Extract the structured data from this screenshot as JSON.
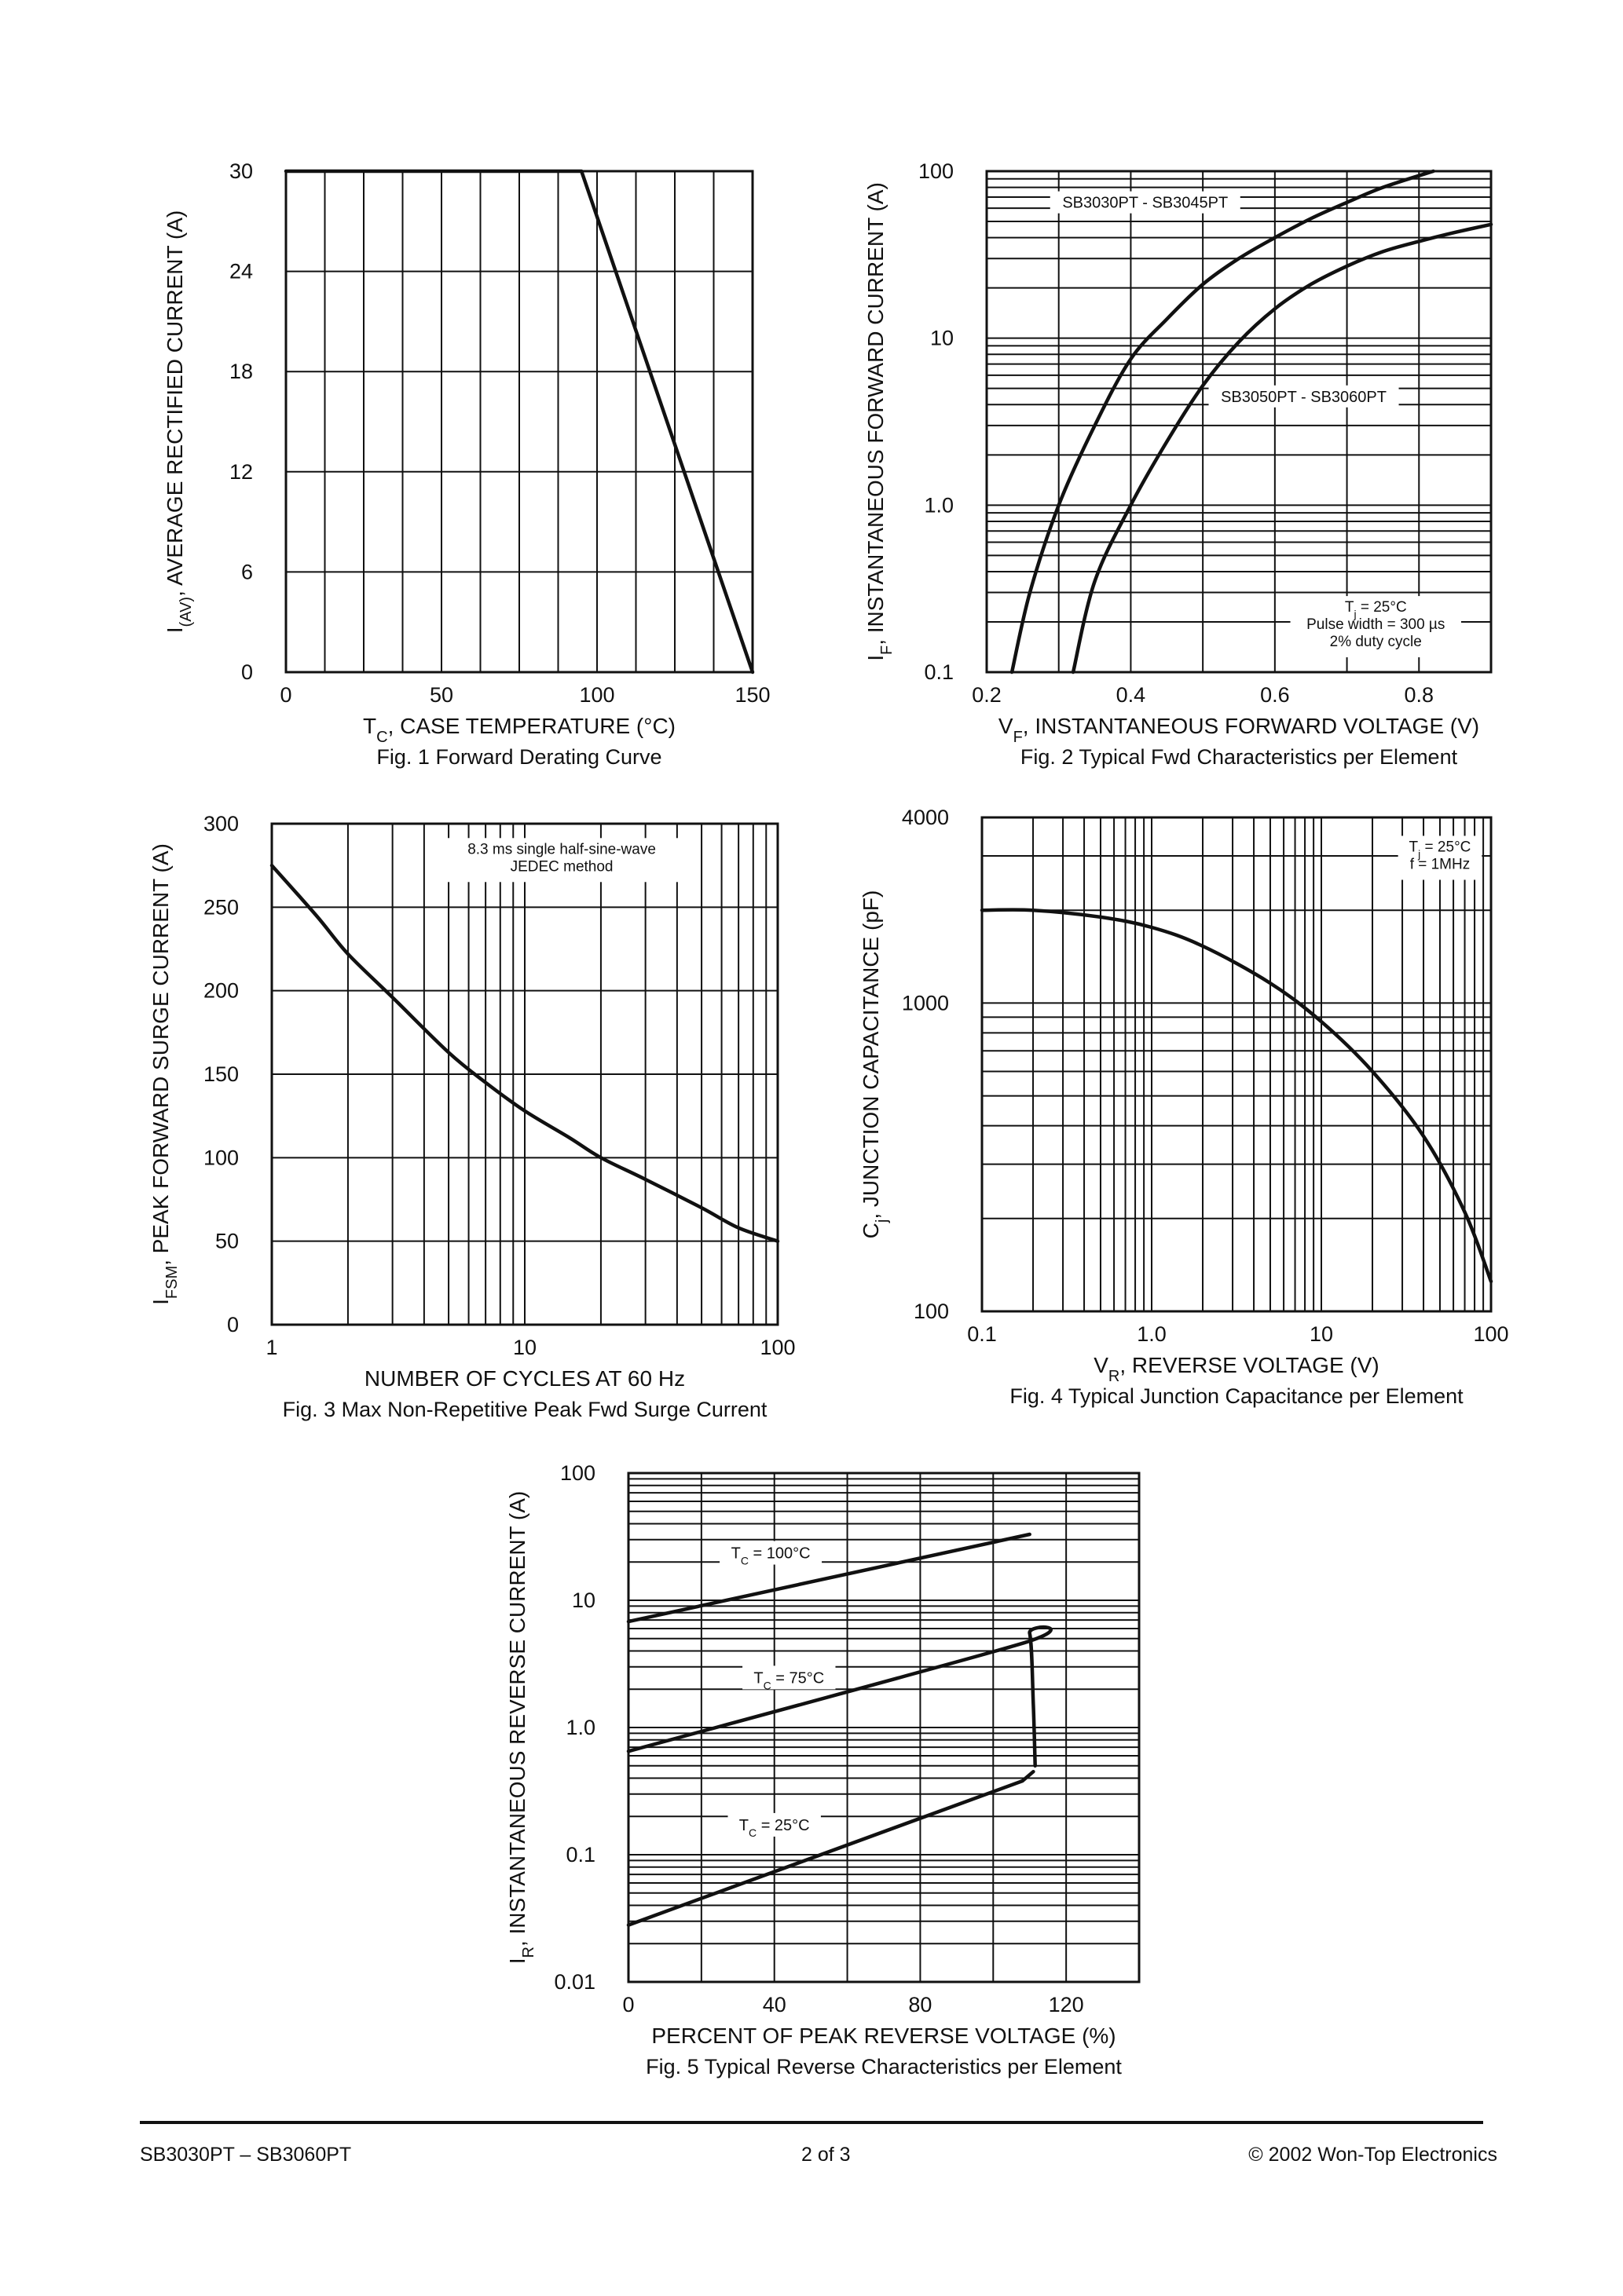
{
  "chart_data": [
    {
      "id": "fig1",
      "type": "line",
      "x_scale": "linear",
      "y_scale": "linear",
      "xlim": [
        0,
        150
      ],
      "ylim": [
        0,
        30
      ],
      "x_ticks": [
        0,
        50,
        100,
        150
      ],
      "y_ticks": [
        0,
        6,
        12,
        18,
        24,
        30
      ],
      "x_tick_labels": [
        "0",
        "50",
        "100",
        "150"
      ],
      "y_tick_labels": [
        "0",
        "6",
        "12",
        "18",
        "24",
        "30"
      ],
      "x_grid": [
        0,
        12.5,
        25,
        37.5,
        50,
        62.5,
        75,
        87.5,
        100,
        112.5,
        125,
        137.5,
        150
      ],
      "y_grid": [
        0,
        6,
        12,
        18,
        24,
        30
      ],
      "xlabel": {
        "main": "T",
        "sub": "C",
        "rest": ", CASE TEMPERATURE (°C)"
      },
      "ylabel": {
        "main": "I",
        "sub": "(AV)",
        "rest": ", AVERAGE RECTIFIED CURRENT (A)"
      },
      "caption": "Fig. 1  Forward Derating Curve",
      "series": [
        {
          "name": "I(AV)",
          "points": [
            [
              0,
              30
            ],
            [
              95,
              30
            ],
            [
              150,
              0
            ]
          ]
        }
      ],
      "annotations": []
    },
    {
      "id": "fig2",
      "type": "line",
      "x_scale": "linear",
      "y_scale": "log",
      "xlim": [
        0.2,
        0.9
      ],
      "ylim": [
        0.1,
        100
      ],
      "x_ticks": [
        0.2,
        0.4,
        0.6,
        0.8
      ],
      "y_ticks": [
        0.1,
        1,
        10,
        100
      ],
      "x_tick_labels": [
        "0.2",
        "0.4",
        "0.6",
        "0.8"
      ],
      "y_tick_labels": [
        "0.1",
        "1.0",
        "10",
        "100"
      ],
      "x_grid": [
        0.2,
        0.3,
        0.4,
        0.5,
        0.6,
        0.7,
        0.8,
        0.9
      ],
      "y_grid": "log",
      "xlabel": {
        "main": "V",
        "sub": "F",
        "rest": ", INSTANTANEOUS FORWARD VOLTAGE (V)"
      },
      "ylabel": {
        "main": "I",
        "sub": "F",
        "rest": ", INSTANTANEOUS FORWARD CURRENT (A)"
      },
      "caption": "Fig. 2  Typical Fwd Characteristics per Element",
      "series": [
        {
          "name": "SB3030PT - SB3045PT",
          "points": [
            [
              0.235,
              0.1
            ],
            [
              0.26,
              0.3
            ],
            [
              0.3,
              1.0
            ],
            [
              0.35,
              3
            ],
            [
              0.4,
              7.5
            ],
            [
              0.45,
              13
            ],
            [
              0.5,
              21
            ],
            [
              0.55,
              30
            ],
            [
              0.6,
              40
            ],
            [
              0.65,
              52
            ],
            [
              0.7,
              65
            ],
            [
              0.75,
              80
            ],
            [
              0.82,
              100
            ]
          ]
        },
        {
          "name": "SB3050PT - SB3060PT",
          "points": [
            [
              0.32,
              0.1
            ],
            [
              0.35,
              0.35
            ],
            [
              0.4,
              1.0
            ],
            [
              0.45,
              2.4
            ],
            [
              0.5,
              5.2
            ],
            [
              0.55,
              9.5
            ],
            [
              0.6,
              15
            ],
            [
              0.65,
              21
            ],
            [
              0.7,
              27
            ],
            [
              0.75,
              33
            ],
            [
              0.8,
              38
            ],
            [
              0.85,
              43
            ],
            [
              0.9,
              48
            ]
          ]
        }
      ],
      "annotations": [
        {
          "kind": "box-label",
          "text": "SB3030PT - SB3045PT",
          "at": [
            0.42,
            61
          ]
        },
        {
          "kind": "box-label",
          "text": "SB3050PT - SB3060PT",
          "at": [
            0.64,
            4.2
          ]
        },
        {
          "kind": "condition",
          "lines": [
            "T|j| = 25°C",
            "Pulse width = 300 µs",
            "2% duty cycle"
          ],
          "at": [
            0.74,
            0.23
          ]
        }
      ]
    },
    {
      "id": "fig3",
      "type": "line",
      "x_scale": "log",
      "y_scale": "linear",
      "xlim": [
        1,
        100
      ],
      "ylim": [
        0,
        300
      ],
      "x_ticks": [
        1,
        10,
        100
      ],
      "y_ticks": [
        0,
        50,
        100,
        150,
        200,
        250,
        300
      ],
      "x_tick_labels": [
        "1",
        "10",
        "100"
      ],
      "y_tick_labels": [
        "0",
        "50",
        "100",
        "150",
        "200",
        "250",
        "300"
      ],
      "x_grid": "log",
      "y_grid": [
        0,
        50,
        100,
        150,
        200,
        250,
        300
      ],
      "xlabel": {
        "main": "NUMBER OF CYCLES AT 60 Hz",
        "sub": "",
        "rest": ""
      },
      "ylabel": {
        "main": "I",
        "sub": "FSM",
        "rest": ", PEAK FORWARD SURGE CURRENT (A)"
      },
      "caption": "Fig. 3  Max Non-Repetitive Peak Fwd Surge Current",
      "series": [
        {
          "name": "IFSM",
          "points": [
            [
              1,
              275
            ],
            [
              1.5,
              245
            ],
            [
              2,
              222
            ],
            [
              3,
              196
            ],
            [
              5,
              163
            ],
            [
              7,
              145
            ],
            [
              10,
              128
            ],
            [
              15,
              112
            ],
            [
              20,
              100
            ],
            [
              30,
              87
            ],
            [
              50,
              70
            ],
            [
              70,
              58
            ],
            [
              100,
              50
            ]
          ]
        }
      ],
      "annotations": [
        {
          "kind": "condition",
          "lines": [
            "8.3 ms single half-sine-wave",
            "JEDEC method"
          ],
          "at": [
            14,
            282
          ]
        }
      ]
    },
    {
      "id": "fig4",
      "type": "line",
      "x_scale": "log",
      "y_scale": "log",
      "xlim": [
        0.1,
        100
      ],
      "ylim": [
        100,
        4000
      ],
      "x_ticks": [
        0.1,
        1,
        10,
        100
      ],
      "y_ticks": [
        100,
        1000,
        4000
      ],
      "x_tick_labels": [
        "0.1",
        "1.0",
        "10",
        "100"
      ],
      "y_tick_labels": [
        "100",
        "1000",
        "4000"
      ],
      "x_grid": "log",
      "y_grid": "log",
      "xlabel": {
        "main": "V",
        "sub": "R",
        "rest": ", REVERSE VOLTAGE (V)"
      },
      "ylabel": {
        "main": "C",
        "sub": "j",
        "rest": ", JUNCTION CAPACITANCE (pF)"
      },
      "caption": "Fig. 4  Typical Junction Capacitance per Element",
      "series": [
        {
          "name": "Cj",
          "points": [
            [
              0.1,
              2000
            ],
            [
              0.2,
              2000
            ],
            [
              0.5,
              1900
            ],
            [
              1,
              1760
            ],
            [
              2,
              1530
            ],
            [
              5,
              1160
            ],
            [
              10,
              870
            ],
            [
              20,
              600
            ],
            [
              40,
              370
            ],
            [
              70,
              210
            ],
            [
              100,
              125
            ]
          ]
        }
      ],
      "annotations": [
        {
          "kind": "condition",
          "lines": [
            "T|j| = 25°C",
            "f = 1MHz"
          ],
          "at": [
            50,
            3100
          ]
        }
      ]
    },
    {
      "id": "fig5",
      "type": "line",
      "x_scale": "linear",
      "y_scale": "log",
      "xlim": [
        0,
        140
      ],
      "ylim": [
        0.01,
        100
      ],
      "x_ticks": [
        0,
        40,
        80,
        120
      ],
      "y_ticks": [
        0.01,
        0.1,
        1,
        10,
        100
      ],
      "x_tick_labels": [
        "0",
        "40",
        "80",
        "120"
      ],
      "y_tick_labels": [
        "0.01",
        "0.1",
        "1.0",
        "10",
        "100"
      ],
      "x_grid": [
        0,
        20,
        40,
        60,
        80,
        100,
        120,
        140
      ],
      "y_grid": "log",
      "xlabel": {
        "main": "PERCENT OF PEAK REVERSE VOLTAGE (%)",
        "sub": "",
        "rest": ""
      },
      "ylabel": {
        "main": "I",
        "sub": "R",
        "rest": ", INSTANTANEOUS REVERSE CURRENT (A)"
      },
      "caption": "Fig. 5  Typical Reverse Characteristics per Element",
      "series": [
        {
          "name": "TC = 100°C",
          "points": [
            [
              0,
              6.8
            ],
            [
              110,
              33
            ]
          ]
        },
        {
          "name": "TC = 75°C",
          "points": [
            [
              0,
              0.65
            ],
            [
              107,
              4.5
            ],
            [
              110,
              5.5
            ],
            [
              111,
              1.5
            ],
            [
              111.5,
              0.5
            ]
          ]
        },
        {
          "name": "TC = 25°C",
          "points": [
            [
              0,
              0.028
            ],
            [
              108,
              0.38
            ],
            [
              111,
              0.45
            ]
          ]
        }
      ],
      "annotations": [
        {
          "kind": "label",
          "text": "T|C| = 100°C",
          "at": [
            39,
            22
          ]
        },
        {
          "kind": "label",
          "text": "T|C| = 75°C",
          "at": [
            44,
            2.3
          ]
        },
        {
          "kind": "label",
          "text": "T|C| = 25°C",
          "at": [
            40,
            0.16
          ]
        }
      ]
    }
  ],
  "footer": {
    "left": "SB3030PT – SB3060PT",
    "center": "2  of  3",
    "right": "© 2002 Won-Top Electronics"
  }
}
